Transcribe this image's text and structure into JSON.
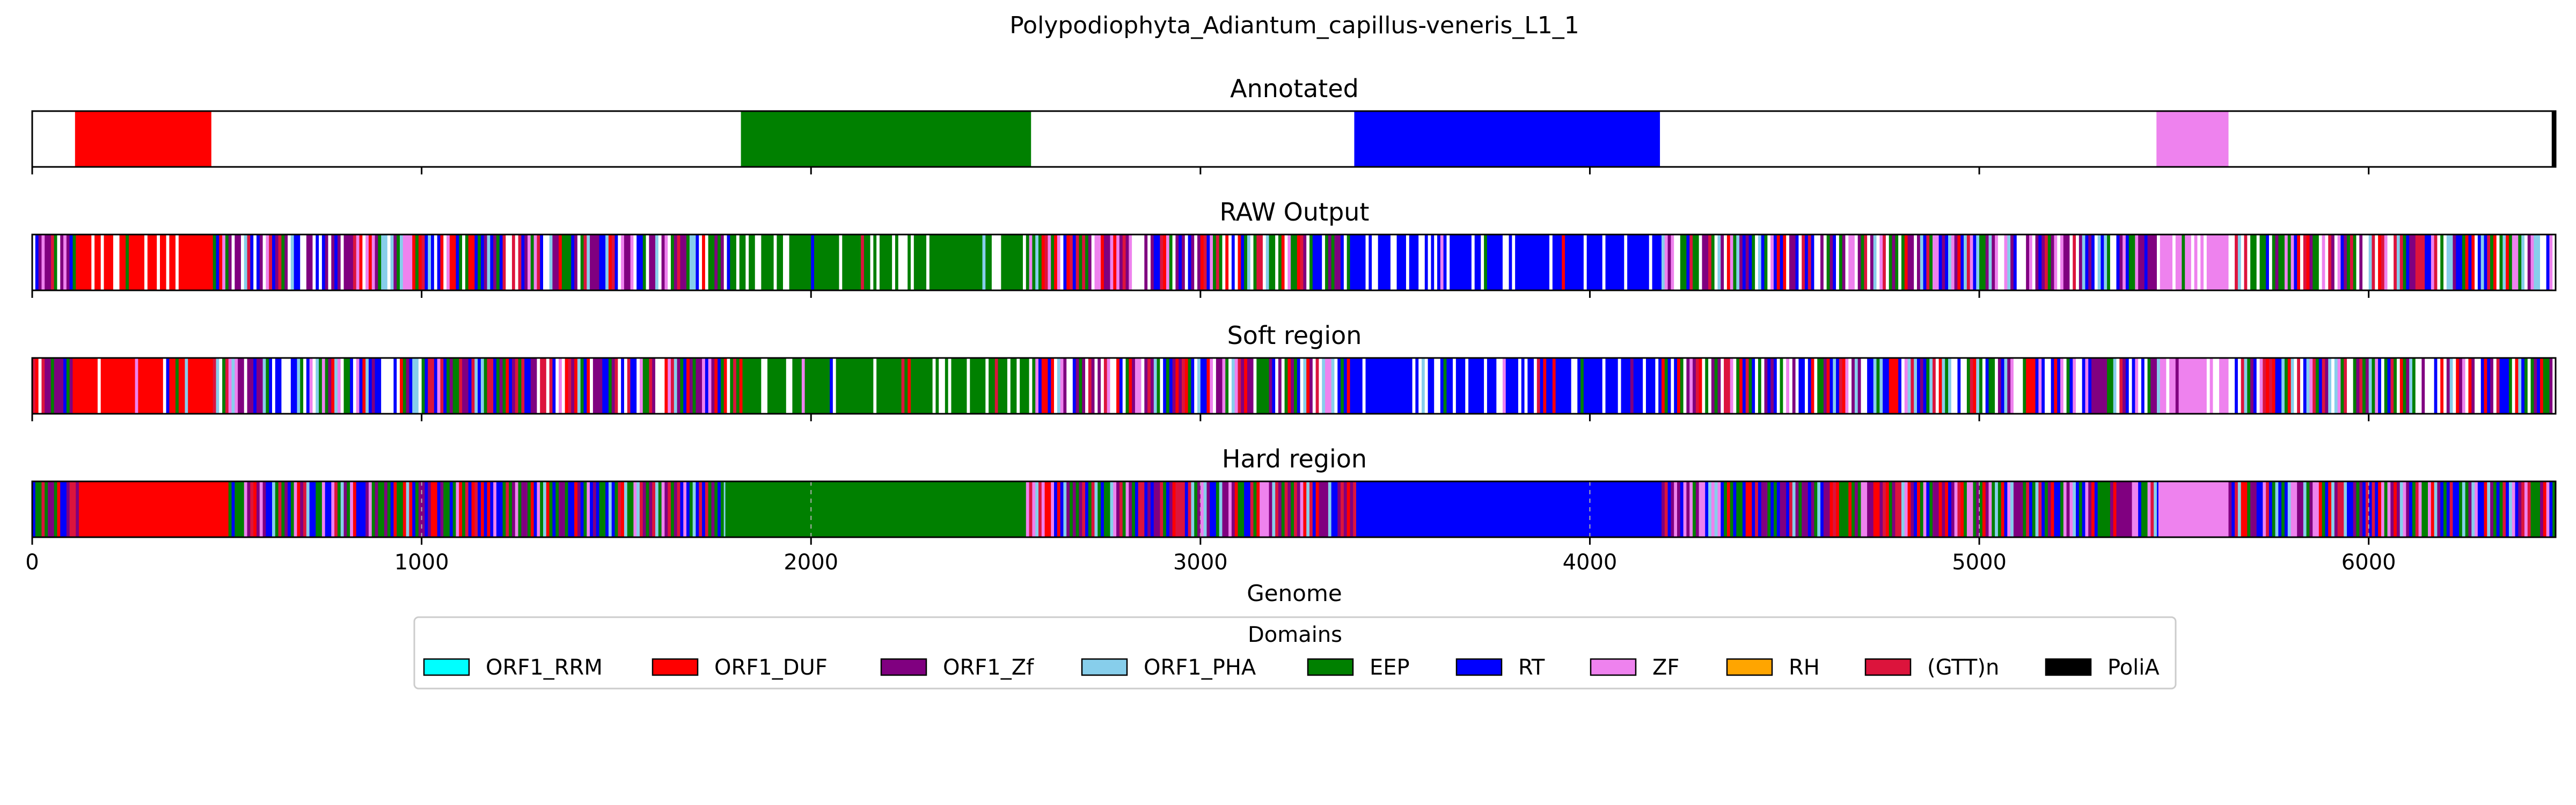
{
  "chart_data": {
    "type": "bar",
    "title": "Polypodiophyta_Adiantum_capillus-veneris_L1_1",
    "xlabel": "Genome",
    "xlim": [
      0,
      6480
    ],
    "xticks": [
      "0",
      "1000",
      "2000",
      "3000",
      "4000",
      "5000",
      "6000"
    ],
    "tick_values": [
      0,
      1000,
      2000,
      3000,
      4000,
      5000,
      6000
    ],
    "grid": "x dashed (Hard region only)",
    "legend": {
      "title": "Domains",
      "placement": "bottom-center",
      "entries": [
        {
          "name": "ORF1_RRM",
          "color": "#00ffff"
        },
        {
          "name": "ORF1_DUF",
          "color": "#ff0000"
        },
        {
          "name": "ORF1_Zf",
          "color": "#800080"
        },
        {
          "name": "ORF1_PHA",
          "color": "#87ceeb"
        },
        {
          "name": "EEP",
          "color": "#008000"
        },
        {
          "name": "RT",
          "color": "#0000ff"
        },
        {
          "name": "ZF",
          "color": "#ee82ee"
        },
        {
          "name": "RH",
          "color": "#ffa500"
        },
        {
          "name": "(GTT)n",
          "color": "#dc143c"
        },
        {
          "name": "PoliA",
          "color": "#000000"
        }
      ]
    },
    "tracks": [
      {
        "name": "Annotated",
        "segments": [
          {
            "domain": "ORF1_DUF",
            "start": 110,
            "end": 460
          },
          {
            "domain": "EEP",
            "start": 1820,
            "end": 2565
          },
          {
            "domain": "RT",
            "start": 3395,
            "end": 4180
          },
          {
            "domain": "ZF",
            "start": 5455,
            "end": 5640
          },
          {
            "domain": "PoliA",
            "start": 6470,
            "end": 6480
          }
        ]
      },
      {
        "name": "RAW Output",
        "segments": [
          {
            "domain": "ORF1_DUF",
            "start": 110,
            "end": 460
          },
          {
            "domain": "EEP",
            "start": 1800,
            "end": 2560
          },
          {
            "domain": "RT",
            "start": 3380,
            "end": 4180
          },
          {
            "domain": "ZF",
            "start": 5460,
            "end": 5640
          }
        ]
      },
      {
        "name": "Soft region",
        "segments": [
          {
            "domain": "ORF1_DUF",
            "start": 110,
            "end": 460
          },
          {
            "domain": "EEP",
            "start": 1800,
            "end": 2560
          },
          {
            "domain": "RT",
            "start": 3380,
            "end": 4180
          },
          {
            "domain": "ZF",
            "start": 5460,
            "end": 5640
          }
        ]
      },
      {
        "name": "Hard region",
        "segments": [
          {
            "domain": "ORF1_DUF",
            "start": 120,
            "end": 500
          },
          {
            "domain": "EEP",
            "start": 1780,
            "end": 2550
          },
          {
            "domain": "RT",
            "start": 3400,
            "end": 4180
          },
          {
            "domain": "ZF",
            "start": 5460,
            "end": 5640
          }
        ]
      }
    ]
  }
}
